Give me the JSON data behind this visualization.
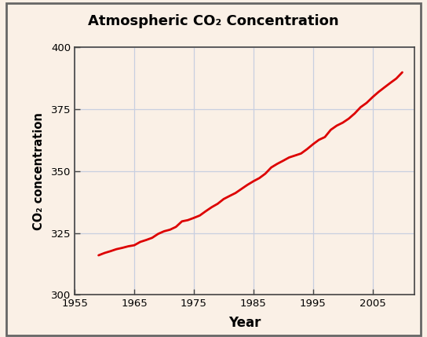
{
  "title": "Atmospheric CO₂ Concentration",
  "xlabel": "Year",
  "ylabel": "CO₂ concentration",
  "xlim": [
    1955,
    2012
  ],
  "ylim": [
    300,
    400
  ],
  "xticks": [
    1955,
    1965,
    1975,
    1985,
    1995,
    2005
  ],
  "yticks": [
    300,
    325,
    350,
    375,
    400
  ],
  "line_color": "#dd0000",
  "line_width": 2.0,
  "plot_bg": "#faf0e6",
  "outer_bg": "#faf0e6",
  "title_bg": "#f5a86a",
  "border_color": "#888888",
  "grid_color": "#c8cfe0",
  "years": [
    1959,
    1960,
    1961,
    1962,
    1963,
    1964,
    1965,
    1966,
    1967,
    1968,
    1969,
    1970,
    1971,
    1972,
    1973,
    1974,
    1975,
    1976,
    1977,
    1978,
    1979,
    1980,
    1981,
    1982,
    1983,
    1984,
    1985,
    1986,
    1987,
    1988,
    1989,
    1990,
    1991,
    1992,
    1993,
    1994,
    1995,
    1996,
    1997,
    1998,
    1999,
    2000,
    2001,
    2002,
    2003,
    2004,
    2005,
    2006,
    2007,
    2008,
    2009,
    2010
  ],
  "co2": [
    315.97,
    316.91,
    317.64,
    318.45,
    318.99,
    319.62,
    320.04,
    321.38,
    322.16,
    323.04,
    324.62,
    325.68,
    326.32,
    327.46,
    329.68,
    330.18,
    331.08,
    332.05,
    333.78,
    335.41,
    336.78,
    338.68,
    339.93,
    341.13,
    342.78,
    344.42,
    345.87,
    347.15,
    348.93,
    351.45,
    352.9,
    354.16,
    355.48,
    356.27,
    357.07,
    358.82,
    360.8,
    362.59,
    363.71,
    366.65,
    368.33,
    369.52,
    371.13,
    373.22,
    375.77,
    377.49,
    379.8,
    381.9,
    383.76,
    385.59,
    387.35,
    389.85
  ]
}
